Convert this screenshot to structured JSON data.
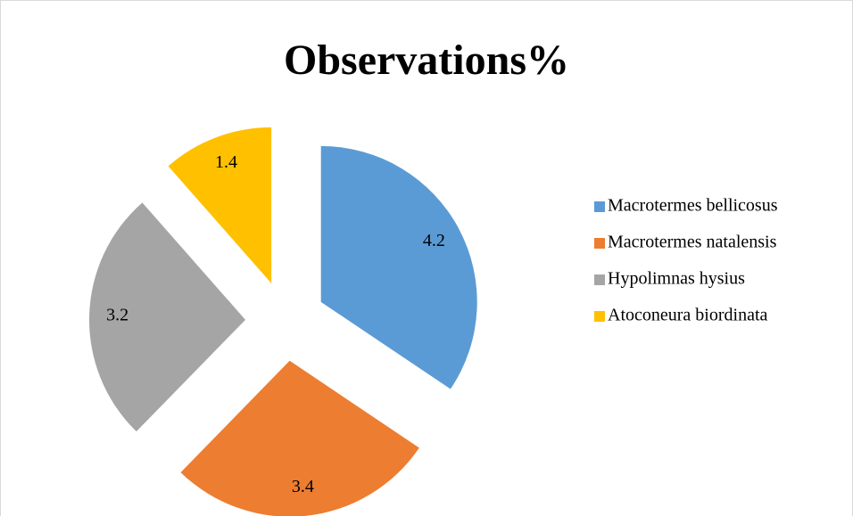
{
  "chart_data": {
    "type": "pie",
    "title": "Observations%",
    "categories": [
      "Macrotermes bellicosus",
      "Macrotermes natalensis",
      "Hypolimnas hysius",
      "Atoconeura biordinata"
    ],
    "values": [
      4.2,
      3.4,
      3.2,
      1.4
    ],
    "colors": [
      "#5b9bd5",
      "#ed7d31",
      "#a5a5a5",
      "#ffc000"
    ],
    "legend": "right"
  }
}
